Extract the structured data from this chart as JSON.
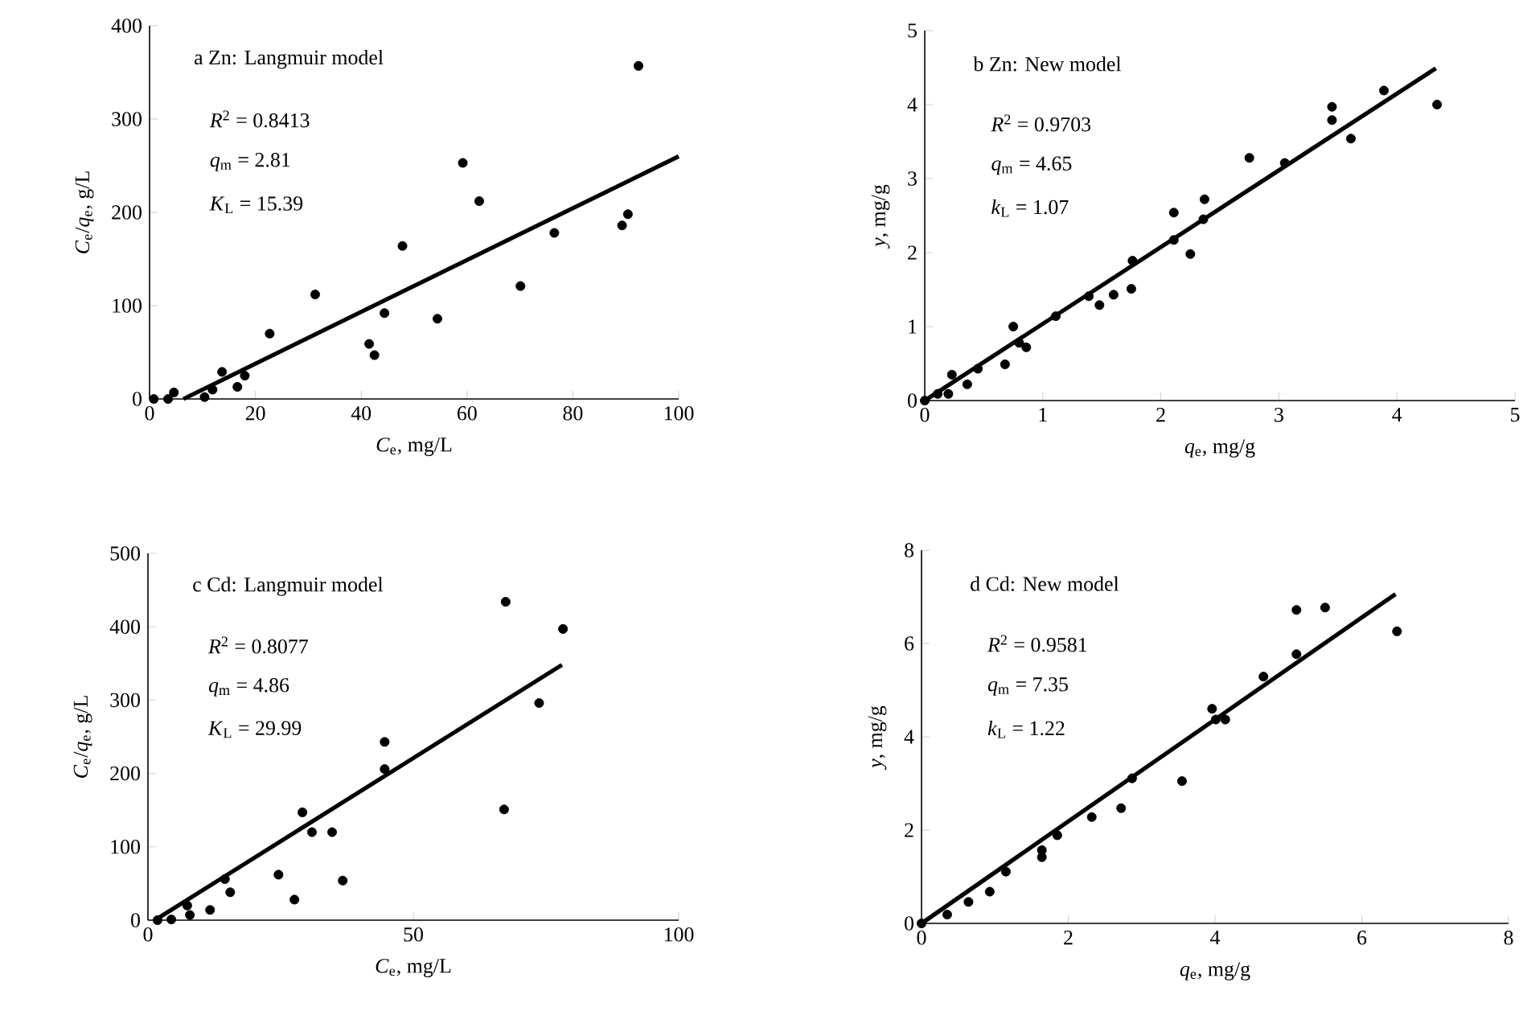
{
  "chart_data": [
    {
      "type": "scatter",
      "title": "a  Zn: Langmuir model",
      "xlabel": "*C*$_{e}$, mg/L",
      "ylabel": "*C*$_{e}$/*q*$_{e}$, g/L",
      "annotations": [
        "*R*$^{2}$ = 0.8413",
        "*q*$_{m}$ = 2.81",
        "*K*$_{L}$ = 15.39"
      ],
      "xlim": [
        0,
        100
      ],
      "ylim": [
        0,
        400
      ],
      "xticks": [
        0,
        20,
        40,
        60,
        80,
        100
      ],
      "yticks": [
        0,
        100,
        200,
        300,
        400
      ],
      "series": [
        {
          "color": "#000000",
          "marker": "circle",
          "x": [
            0.8,
            3.5,
            4.6,
            10.4,
            11.9,
            13.7,
            16.6,
            18,
            22.7,
            31.3,
            41.5,
            42.5,
            44.4,
            47.8,
            54.4,
            59.2,
            62.3,
            70.1,
            76.5,
            89.3,
            90.4,
            92.4
          ],
          "values": [
            0,
            0,
            7,
            2,
            10,
            29,
            13,
            25,
            70,
            112,
            59,
            47,
            92,
            164,
            86,
            253,
            212,
            121,
            178,
            186,
            198,
            357
          ]
        },
        {
          "type": "line",
          "color": "#000000",
          "x": [
            6.4,
            100
          ],
          "values": [
            0,
            260
          ]
        }
      ]
    },
    {
      "type": "scatter",
      "title": "b  Zn: New model",
      "xlabel": "*q*$_{e}$, mg/g",
      "ylabel": "*y*, mg/g",
      "annotations": [
        "*R*$^{2}$ = 0.9703",
        "*q*$_{m}$ = 4.65",
        "*k*$_{L}$ = 1.07"
      ],
      "xlim": [
        0,
        5
      ],
      "ylim": [
        0,
        5
      ],
      "xticks": [
        0,
        1,
        2,
        3,
        4,
        5
      ],
      "yticks": [
        0,
        1,
        2,
        3,
        4,
        5
      ],
      "series": [
        {
          "color": "#000000",
          "marker": "circle",
          "x": [
            0,
            0.11,
            0.2,
            0.23,
            0.36,
            0.45,
            0.68,
            0.75,
            0.8,
            0.86,
            1.11,
            1.39,
            1.48,
            1.6,
            1.75,
            1.76,
            2.11,
            2.11,
            2.25,
            2.36,
            2.37,
            2.75,
            3.05,
            3.45,
            3.45,
            3.61,
            3.89,
            4.34
          ],
          "values": [
            0,
            0.09,
            0.09,
            0.35,
            0.22,
            0.43,
            0.49,
            1.0,
            0.78,
            0.72,
            1.14,
            1.41,
            1.29,
            1.43,
            1.51,
            1.89,
            2.54,
            2.17,
            1.98,
            2.45,
            2.72,
            3.28,
            3.21,
            3.79,
            3.97,
            3.54,
            4.19,
            4.0
          ]
        },
        {
          "type": "line",
          "color": "#000000",
          "x": [
            0,
            4.33
          ],
          "values": [
            0,
            4.49
          ]
        }
      ]
    },
    {
      "type": "scatter",
      "title": "c  Cd: Langmuir model",
      "xlabel": "*C*$_{e}$, mg/L",
      "ylabel": "*C*$_{e}$/*q*$_{e}$, g/L",
      "annotations": [
        "*R*$^{2}$ = 0.8077",
        "*q*$_{m}$ = 4.86",
        "*K*$_{L}$ = 29.99"
      ],
      "xlim": [
        0,
        100
      ],
      "ylim": [
        0,
        500
      ],
      "xticks": [
        0,
        50,
        100
      ],
      "yticks": [
        0,
        100,
        200,
        300,
        400,
        500
      ],
      "series": [
        {
          "color": "#000000",
          "marker": "circle",
          "x": [
            1.8,
            4.4,
            7.4,
            7.9,
            11.7,
            14.5,
            15.5,
            24.6,
            27.6,
            29.1,
            30.9,
            34.7,
            36.7,
            44.6,
            44.6,
            67.1,
            67.4,
            73.7,
            78.2
          ],
          "values": [
            0,
            1,
            20,
            7,
            14,
            56,
            38,
            62,
            28,
            147,
            120,
            120,
            54,
            243,
            206,
            151,
            434,
            296,
            397
          ]
        },
        {
          "type": "line",
          "color": "#000000",
          "x": [
            1.3,
            78
          ],
          "values": [
            0,
            348
          ]
        }
      ]
    },
    {
      "type": "scatter",
      "title": "d  Cd: New model",
      "xlabel": "*q*$_{e}$, mg/g",
      "ylabel": "*y*, mg/g",
      "annotations": [
        "*R*$^{2}$ = 0.9581",
        "*q*$_{m}$ = 7.35",
        "*k*$_{L}$ = 1.22"
      ],
      "xlim": [
        0,
        8
      ],
      "ylim": [
        0,
        8
      ],
      "xticks": [
        0,
        2,
        4,
        6,
        8
      ],
      "yticks": [
        0,
        2,
        4,
        6,
        8
      ],
      "series": [
        {
          "color": "#000000",
          "marker": "circle",
          "x": [
            0,
            0.35,
            0.64,
            0.93,
            1.15,
            1.64,
            1.64,
            1.85,
            2.32,
            2.72,
            2.87,
            3.55,
            3.96,
            4.01,
            4.14,
            4.66,
            5.11,
            5.11,
            5.5,
            6.48
          ],
          "values": [
            0,
            0.19,
            0.46,
            0.68,
            1.11,
            1.42,
            1.57,
            1.89,
            2.28,
            2.47,
            3.11,
            3.05,
            4.6,
            4.37,
            4.37,
            5.29,
            5.77,
            6.72,
            6.77,
            6.26
          ]
        },
        {
          "type": "line",
          "color": "#000000",
          "x": [
            0,
            6.46
          ],
          "values": [
            0,
            7.06
          ]
        }
      ]
    }
  ]
}
